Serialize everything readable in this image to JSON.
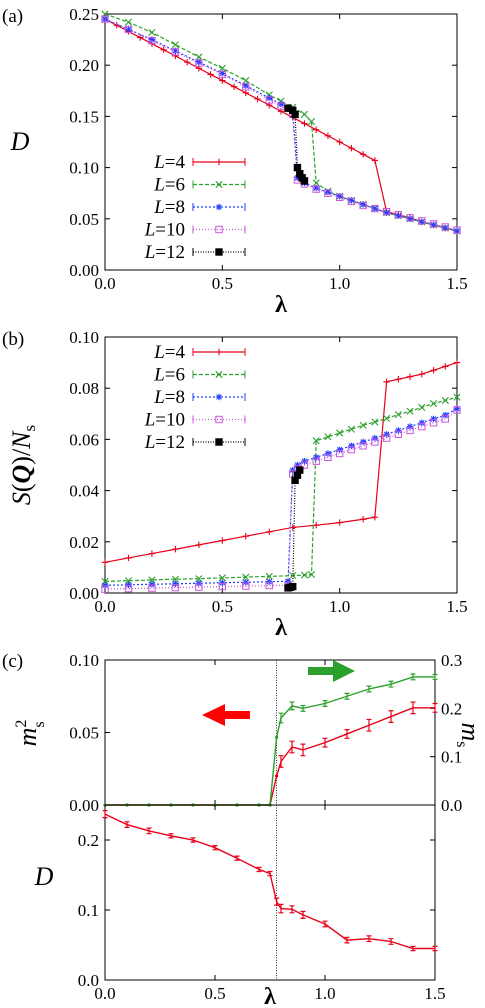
{
  "colors": {
    "L4": "#e8001a",
    "L6": "#2ca02c",
    "L8": "#1f3fff",
    "L10": "#cc55dd",
    "L12": "#000000",
    "ms2": "#e8001a",
    "ms": "#2ca02c",
    "arrow_red": "#ff0000",
    "arrow_green": "#2ca02c",
    "D_c": "#e8001a"
  },
  "chart_data": [
    {
      "panel": "(a)",
      "type": "line",
      "xlabel": "λ",
      "ylabel": "D",
      "xlim": [
        0,
        1.5
      ],
      "ylim": [
        0,
        0.25
      ],
      "xticks": [
        "0.0",
        "0.5",
        "1.0",
        "1.5"
      ],
      "yticks": [
        "0.00",
        "0.05",
        "0.10",
        "0.15",
        "0.20",
        "0.25"
      ],
      "legend": "lower-left",
      "series": [
        {
          "name": "L=4",
          "key": "L4",
          "marker": "plus",
          "x": [
            0,
            0.05,
            0.1,
            0.15,
            0.2,
            0.25,
            0.3,
            0.35,
            0.4,
            0.45,
            0.5,
            0.55,
            0.6,
            0.65,
            0.7,
            0.75,
            0.8,
            0.85,
            0.9,
            0.95,
            1.0,
            1.05,
            1.1,
            1.15,
            1.2,
            1.25,
            1.3,
            1.35,
            1.4,
            1.45,
            1.5
          ],
          "y": [
            0.245,
            0.239,
            0.233,
            0.227,
            0.221,
            0.215,
            0.209,
            0.203,
            0.197,
            0.191,
            0.185,
            0.179,
            0.173,
            0.167,
            0.161,
            0.155,
            0.149,
            0.143,
            0.137,
            0.131,
            0.125,
            0.119,
            0.113,
            0.107,
            0.057,
            0.054,
            0.051,
            0.047,
            0.044,
            0.041,
            0.038
          ]
        },
        {
          "name": "L=6",
          "key": "L6",
          "marker": "x",
          "x": [
            0,
            0.1,
            0.2,
            0.3,
            0.4,
            0.5,
            0.6,
            0.7,
            0.75,
            0.8,
            0.85,
            0.88,
            0.9,
            0.95,
            1.0,
            1.05,
            1.1,
            1.15,
            1.2,
            1.25,
            1.3,
            1.35,
            1.4,
            1.45,
            1.5
          ],
          "y": [
            0.25,
            0.242,
            0.232,
            0.22,
            0.208,
            0.197,
            0.185,
            0.171,
            0.165,
            0.159,
            0.152,
            0.145,
            0.085,
            0.077,
            0.072,
            0.068,
            0.064,
            0.06,
            0.056,
            0.053,
            0.05,
            0.047,
            0.044,
            0.041,
            0.038
          ]
        },
        {
          "name": "L=8",
          "key": "L8",
          "marker": "star",
          "x": [
            0,
            0.1,
            0.2,
            0.3,
            0.4,
            0.5,
            0.6,
            0.7,
            0.75,
            0.8,
            0.82,
            0.85,
            0.9,
            0.95,
            1.0,
            1.05,
            1.1,
            1.15,
            1.2,
            1.25,
            1.3,
            1.35,
            1.4,
            1.45,
            1.5
          ],
          "y": [
            0.245,
            0.235,
            0.225,
            0.214,
            0.203,
            0.192,
            0.18,
            0.168,
            0.162,
            0.155,
            0.09,
            0.085,
            0.08,
            0.076,
            0.072,
            0.068,
            0.064,
            0.06,
            0.056,
            0.053,
            0.05,
            0.047,
            0.044,
            0.041,
            0.038
          ]
        },
        {
          "name": "L=10",
          "key": "L10",
          "marker": "square-open",
          "x": [
            0,
            0.1,
            0.2,
            0.3,
            0.4,
            0.5,
            0.6,
            0.7,
            0.75,
            0.8,
            0.82,
            0.85,
            0.9,
            0.95,
            1.0,
            1.05,
            1.1,
            1.15,
            1.2,
            1.25,
            1.3,
            1.35,
            1.4,
            1.45,
            1.5
          ],
          "y": [
            0.245,
            0.235,
            0.224,
            0.213,
            0.202,
            0.191,
            0.179,
            0.166,
            0.16,
            0.152,
            0.088,
            0.084,
            0.079,
            0.075,
            0.071,
            0.067,
            0.063,
            0.06,
            0.057,
            0.054,
            0.051,
            0.048,
            0.045,
            0.042,
            0.039
          ]
        },
        {
          "name": "L=12",
          "key": "L12",
          "marker": "square-filled",
          "x": [
            0.78,
            0.8,
            0.81,
            0.82,
            0.83,
            0.84,
            0.85
          ],
          "y": [
            0.158,
            0.156,
            0.152,
            0.1,
            0.094,
            0.09,
            0.087
          ]
        }
      ]
    },
    {
      "panel": "(b)",
      "type": "line",
      "xlabel": "λ",
      "ylabel": "S(Q)/Ns",
      "xlim": [
        0,
        1.5
      ],
      "ylim": [
        0,
        0.1
      ],
      "xticks": [
        "0.0",
        "0.5",
        "1.0",
        "1.5"
      ],
      "yticks": [
        "0.00",
        "0.02",
        "0.04",
        "0.06",
        "0.08",
        "0.10"
      ],
      "legend": "top-left",
      "series": [
        {
          "name": "L=4",
          "key": "L4",
          "marker": "plus",
          "x": [
            0,
            0.1,
            0.2,
            0.3,
            0.4,
            0.5,
            0.6,
            0.7,
            0.8,
            0.9,
            1.0,
            1.1,
            1.15,
            1.2,
            1.25,
            1.3,
            1.35,
            1.4,
            1.45,
            1.5
          ],
          "y": [
            0.012,
            0.0137,
            0.0154,
            0.0171,
            0.0188,
            0.0205,
            0.0222,
            0.0239,
            0.0256,
            0.0265,
            0.0275,
            0.0288,
            0.0296,
            0.0825,
            0.0835,
            0.0845,
            0.0855,
            0.087,
            0.0885,
            0.09
          ]
        },
        {
          "name": "L=6",
          "key": "L6",
          "marker": "x",
          "x": [
            0,
            0.1,
            0.2,
            0.3,
            0.4,
            0.5,
            0.6,
            0.7,
            0.8,
            0.85,
            0.88,
            0.9,
            0.95,
            1.0,
            1.05,
            1.1,
            1.15,
            1.2,
            1.25,
            1.3,
            1.35,
            1.4,
            1.45,
            1.5
          ],
          "y": [
            0.0045,
            0.0048,
            0.0051,
            0.0054,
            0.0056,
            0.0059,
            0.0062,
            0.0065,
            0.0068,
            0.007,
            0.0072,
            0.0595,
            0.061,
            0.0625,
            0.064,
            0.0655,
            0.0668,
            0.0682,
            0.0697,
            0.071,
            0.0725,
            0.074,
            0.0752,
            0.0765
          ]
        },
        {
          "name": "L=8",
          "key": "L8",
          "marker": "star",
          "x": [
            0,
            0.1,
            0.2,
            0.3,
            0.4,
            0.5,
            0.6,
            0.7,
            0.78,
            0.8,
            0.82,
            0.85,
            0.9,
            0.95,
            1.0,
            1.05,
            1.1,
            1.15,
            1.2,
            1.25,
            1.3,
            1.35,
            1.4,
            1.45,
            1.5
          ],
          "y": [
            0.003,
            0.0032,
            0.0034,
            0.0036,
            0.0038,
            0.004,
            0.0042,
            0.0044,
            0.0046,
            0.048,
            0.05,
            0.0515,
            0.053,
            0.0545,
            0.056,
            0.0575,
            0.059,
            0.0605,
            0.062,
            0.0635,
            0.065,
            0.0665,
            0.068,
            0.0695,
            0.072
          ]
        },
        {
          "name": "L=10",
          "key": "L10",
          "marker": "square-open",
          "x": [
            0,
            0.1,
            0.2,
            0.3,
            0.4,
            0.5,
            0.6,
            0.7,
            0.78,
            0.8,
            0.82,
            0.85,
            0.9,
            0.95,
            1.0,
            1.05,
            1.1,
            1.15,
            1.2,
            1.25,
            1.3,
            1.35,
            1.4,
            1.45,
            1.5
          ],
          "y": [
            0.0015,
            0.0017,
            0.0019,
            0.0021,
            0.0023,
            0.0025,
            0.0027,
            0.0029,
            0.003,
            0.0465,
            0.0485,
            0.05,
            0.0515,
            0.053,
            0.0545,
            0.056,
            0.0575,
            0.059,
            0.0605,
            0.062,
            0.0635,
            0.065,
            0.0665,
            0.068,
            0.0715
          ]
        },
        {
          "name": "L=12",
          "key": "L12",
          "marker": "square-filled",
          "x": [
            0.78,
            0.79,
            0.8,
            0.81,
            0.82,
            0.83
          ],
          "y": [
            0.002,
            0.0022,
            0.0025,
            0.044,
            0.046,
            0.048
          ]
        }
      ]
    },
    {
      "panel": "(c) top",
      "type": "line",
      "xlim": [
        0,
        1.5
      ],
      "ylim_left": [
        0,
        0.1
      ],
      "ylim_right": [
        0,
        0.3
      ],
      "ylabel_left": "m_s^2",
      "ylabel_right": "m_s",
      "yticks_left": [
        "0.00",
        "0.05",
        "0.10"
      ],
      "yticks_right": [
        "0.0",
        "0.1",
        "0.2",
        "0.3"
      ],
      "vline_x": 0.78,
      "series": [
        {
          "key": "ms2",
          "axis": "left",
          "x": [
            0,
            0.1,
            0.2,
            0.3,
            0.4,
            0.5,
            0.6,
            0.7,
            0.75,
            0.78,
            0.8,
            0.85,
            0.9,
            1.0,
            1.1,
            1.2,
            1.3,
            1.4,
            1.5
          ],
          "y": [
            0,
            0,
            0,
            0,
            0,
            0,
            0,
            0,
            0,
            0.02,
            0.03,
            0.04,
            0.038,
            0.043,
            0.049,
            0.055,
            0.061,
            0.067,
            0.067
          ],
          "err": [
            0,
            0,
            0,
            0,
            0,
            0,
            0,
            0,
            0,
            0,
            0.004,
            0.004,
            0.004,
            0.003,
            0.003,
            0.004,
            0.004,
            0.004,
            0.003
          ]
        },
        {
          "key": "ms",
          "axis": "right",
          "x": [
            0,
            0.1,
            0.2,
            0.3,
            0.4,
            0.5,
            0.6,
            0.7,
            0.75,
            0.78,
            0.8,
            0.85,
            0.9,
            1.0,
            1.1,
            1.2,
            1.3,
            1.4,
            1.5
          ],
          "y": [
            0,
            0,
            0,
            0,
            0,
            0,
            0,
            0,
            0,
            0.14,
            0.18,
            0.205,
            0.2,
            0.21,
            0.225,
            0.24,
            0.25,
            0.265,
            0.265
          ],
          "err": [
            0,
            0,
            0,
            0,
            0,
            0,
            0,
            0,
            0,
            0,
            0.01,
            0.008,
            0.006,
            0.006,
            0.006,
            0.006,
            0.006,
            0.006,
            0.005
          ]
        }
      ]
    },
    {
      "panel": "(c) bottom",
      "type": "line",
      "xlabel": "λ",
      "ylabel": "D",
      "xlim": [
        0,
        1.5
      ],
      "ylim": [
        0,
        0.25
      ],
      "xticks": [
        "0.0",
        "0.5",
        "1.0",
        "1.5"
      ],
      "yticks": [
        "0.0",
        "0.1",
        "0.2"
      ],
      "vline_x": 0.78,
      "series": [
        {
          "key": "D_c",
          "x": [
            0,
            0.1,
            0.2,
            0.3,
            0.4,
            0.5,
            0.6,
            0.7,
            0.75,
            0.78,
            0.8,
            0.85,
            0.9,
            1.0,
            1.1,
            1.2,
            1.3,
            1.4,
            1.5
          ],
          "y": [
            0.237,
            0.222,
            0.213,
            0.206,
            0.2,
            0.189,
            0.174,
            0.158,
            0.152,
            0.112,
            0.102,
            0.101,
            0.093,
            0.08,
            0.057,
            0.059,
            0.055,
            0.045,
            0.045
          ],
          "err": [
            0.005,
            0.004,
            0.004,
            0.003,
            0.003,
            0.003,
            0.003,
            0.003,
            0.003,
            0.005,
            0.006,
            0.005,
            0.005,
            0.004,
            0.004,
            0.004,
            0.004,
            0.003,
            0.003
          ]
        }
      ]
    }
  ],
  "labels": {
    "panel_a": "(a)",
    "panel_b": "(b)",
    "panel_c": "(c)",
    "lambda": "λ",
    "D": "D",
    "S_main": "S(",
    "S_Q": "Q",
    "S_end": ")/N",
    "S_sub": "s",
    "m": "m",
    "m_sub": "s",
    "m_sup": "2",
    "L_prefix": "L",
    "legend_values": [
      "=4",
      "=6",
      "=8",
      "=10",
      "=12"
    ]
  }
}
